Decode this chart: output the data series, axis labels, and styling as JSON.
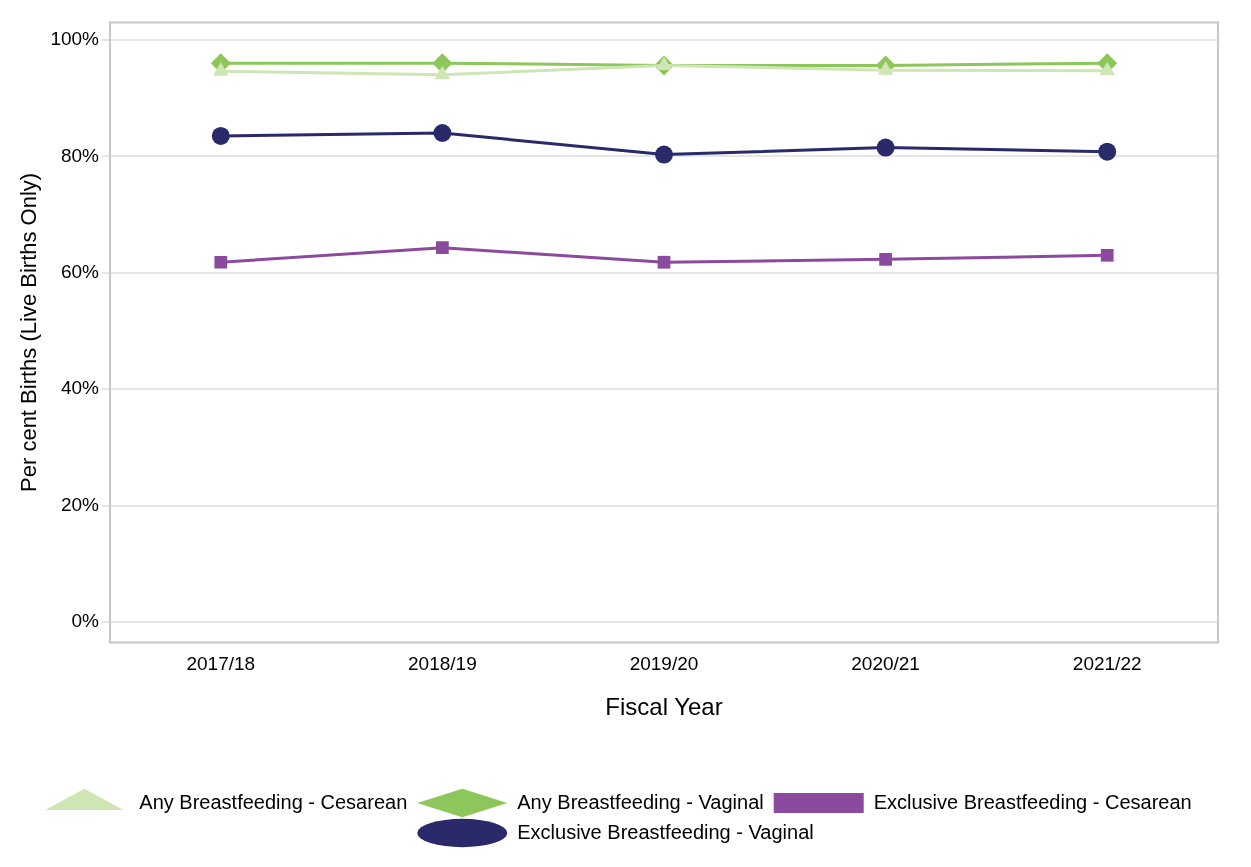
{
  "chart_data": {
    "type": "line",
    "xlabel": "Fiscal Year",
    "ylabel": "Per cent Births (Live Births Only)",
    "categories": [
      "2017/18",
      "2018/19",
      "2019/20",
      "2020/21",
      "2021/22"
    ],
    "series": [
      {
        "name": "Exclusive Breastfeeding - Vaginal",
        "color": "#2a2a6a",
        "marker": "circle",
        "values": [
          83.5,
          84.0,
          80.3,
          81.5,
          80.8
        ]
      },
      {
        "name": "Exclusive Breastfeeding - Cesarean",
        "color": "#8b4a9e",
        "marker": "square",
        "values": [
          61.8,
          64.3,
          61.8,
          62.3,
          63.0
        ]
      },
      {
        "name": "Any Breastfeeding - Vaginal",
        "color": "#8dc65a",
        "marker": "diamond",
        "values": [
          96.0,
          96.0,
          95.6,
          95.6,
          96.0
        ]
      },
      {
        "name": "Any Breastfeeding - Cesarean",
        "color": "#cde6b4",
        "marker": "triangle",
        "values": [
          94.6,
          94.0,
          95.6,
          94.8,
          94.7
        ]
      }
    ],
    "ylim": [
      -3.5,
      103
    ],
    "yticks": [
      {
        "value": 0,
        "label": "0%"
      },
      {
        "value": 20,
        "label": "20%"
      },
      {
        "value": 40,
        "label": "40%"
      },
      {
        "value": 60,
        "label": "60%"
      },
      {
        "value": 80,
        "label": "80%"
      },
      {
        "value": 100,
        "label": "100%"
      }
    ],
    "grid": "y",
    "legend": "bottom",
    "line_style": "solid"
  }
}
